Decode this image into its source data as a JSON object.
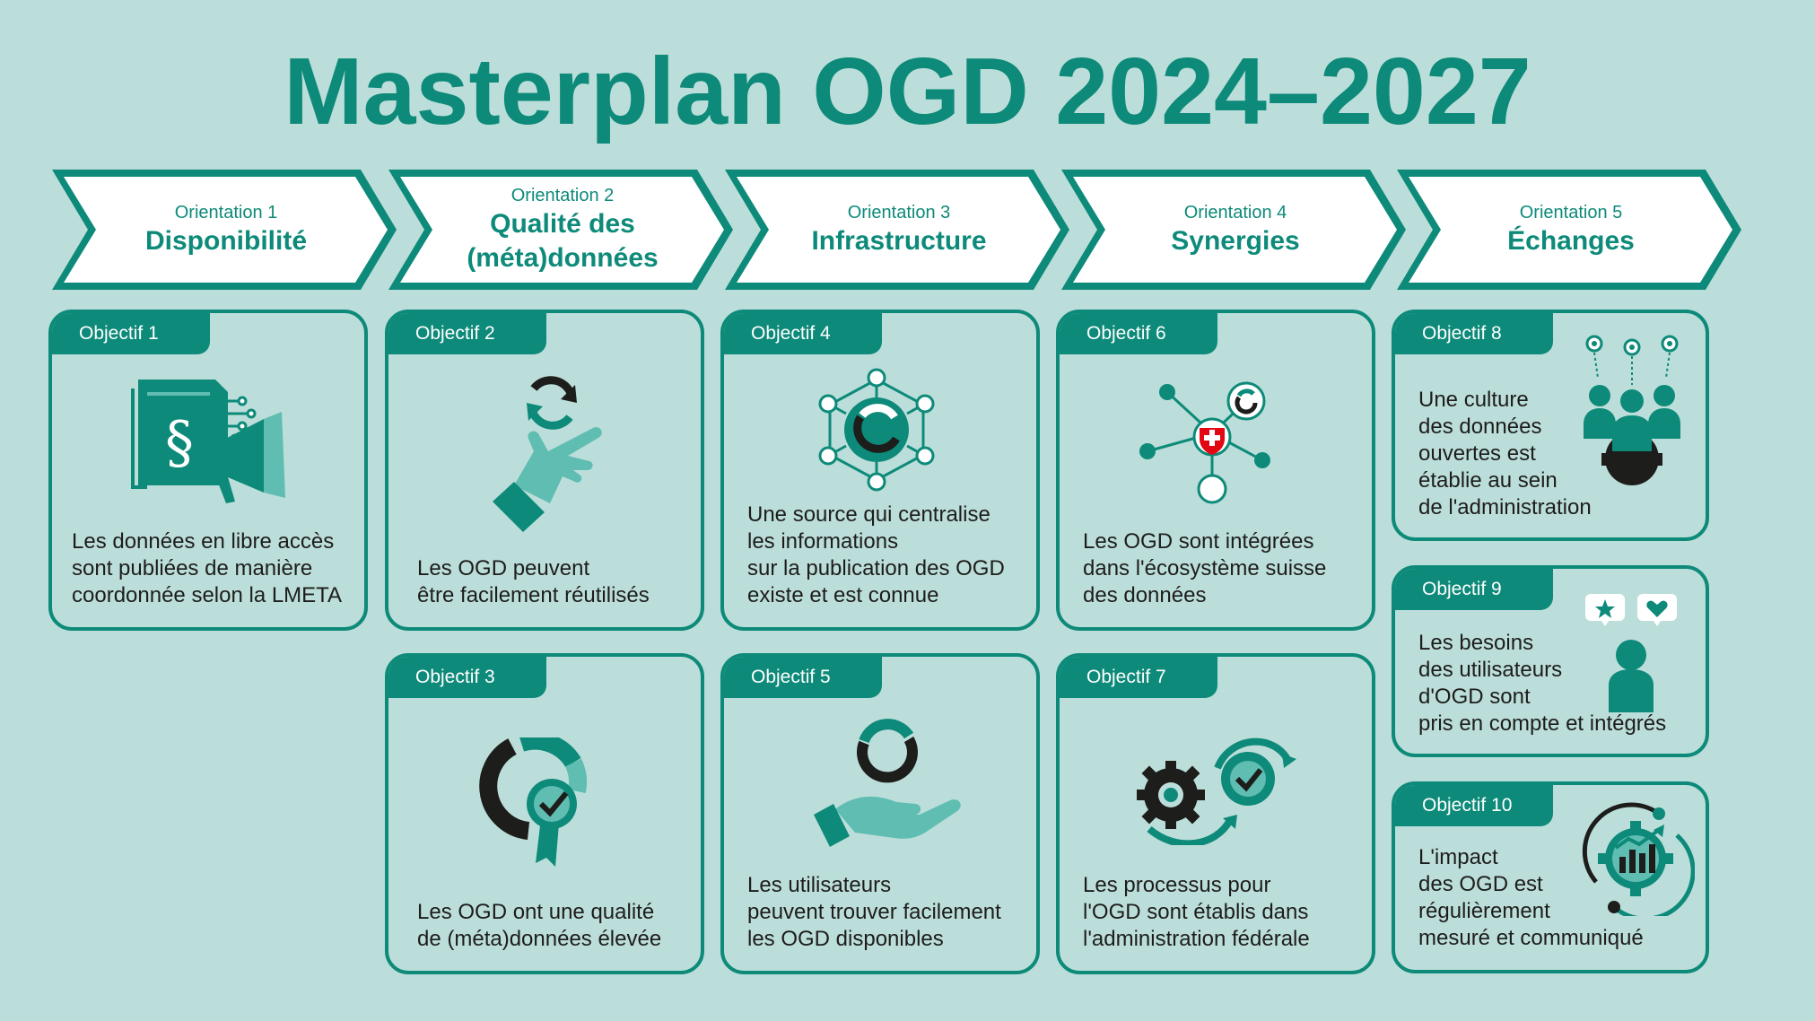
{
  "title": "Masterplan OGD 2024–2027",
  "colors": {
    "background": "#bcdeda",
    "accent": "#0d8a79",
    "light_teal": "#5fbdb2",
    "dark": "#1d1d1b",
    "white": "#ffffff"
  },
  "orientations": [
    {
      "label": "Orientation 1",
      "name": "Disponibilité"
    },
    {
      "label": "Orientation 2",
      "name": "Qualité des\n(méta)données"
    },
    {
      "label": "Orientation 3",
      "name": "Infrastructure"
    },
    {
      "label": "Orientation 4",
      "name": "Synergies"
    },
    {
      "label": "Orientation 5",
      "name": "Échanges"
    }
  ],
  "objectives": [
    {
      "label": "Objectif 1",
      "text": "Les données en libre accès\nsont publiées de manière\ncoordonnée selon la LMETA",
      "icon": "law-document-megaphone-icon"
    },
    {
      "label": "Objectif 2",
      "text": "Les OGD peuvent\nêtre facilement réutilisés",
      "icon": "hand-pointing-refresh-icon"
    },
    {
      "label": "Objectif 3",
      "text": "Les OGD ont une qualité\nde (méta)données élevée",
      "icon": "quality-badge-icon"
    },
    {
      "label": "Objectif 4",
      "text": "Une source qui centralise\nles informations\nsur la publication des OGD\nexiste et est connue",
      "icon": "network-hub-icon"
    },
    {
      "label": "Objectif 5",
      "text": "Les utilisateurs\npeuvent trouver facilement\nles OGD disponibles",
      "icon": "hand-holding-ring-icon"
    },
    {
      "label": "Objectif 6",
      "text": "Les OGD sont intégrées\ndans l'écosystème suisse\ndes données",
      "icon": "swiss-network-icon"
    },
    {
      "label": "Objectif 7",
      "text": "Les processus pour\nl'OGD sont établis dans\nl'administration fédérale",
      "icon": "gears-process-icon"
    },
    {
      "label": "Objectif 8",
      "text": "Une culture\ndes données\nouvertes est\nétablie au sein\nde l'administration",
      "icon": "team-gear-ideas-icon"
    },
    {
      "label": "Objectif 9",
      "text": "Les besoins\ndes utilisateurs\nd'OGD sont\npris en compte et intégrés",
      "icon": "user-feedback-icon"
    },
    {
      "label": "Objectif 10",
      "text": "L'impact\ndes OGD est\nrégulièrement\nmesuré et communiqué",
      "icon": "impact-chart-gear-icon"
    }
  ]
}
